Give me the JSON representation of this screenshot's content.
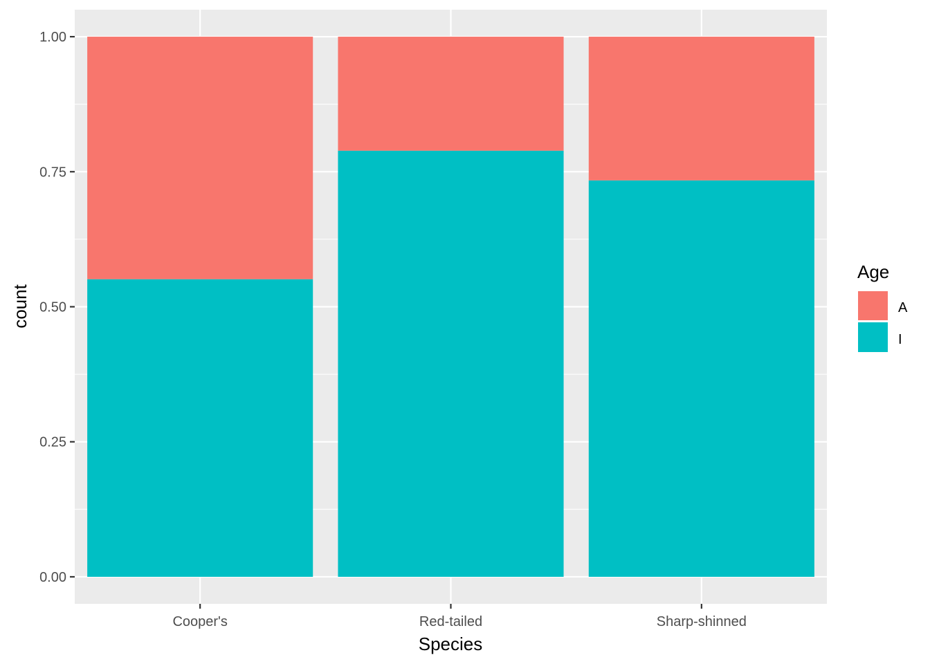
{
  "chart_data": {
    "type": "bar",
    "stacked": true,
    "categories": [
      "Cooper's",
      "Red-tailed",
      "Sharp-shinned"
    ],
    "series": [
      {
        "name": "I",
        "color": "#00bfc4",
        "values": [
          0.551,
          0.789,
          0.734
        ]
      },
      {
        "name": "A",
        "color": "#f8766d",
        "values": [
          0.449,
          0.211,
          0.266
        ]
      }
    ],
    "title": "",
    "xlabel": "Species",
    "ylabel": "count",
    "ylim": [
      -0.05,
      1.05
    ],
    "yticks": [
      "0.00",
      "0.25",
      "0.50",
      "0.75",
      "1.00"
    ],
    "ytick_values": [
      0,
      0.25,
      0.5,
      0.75,
      1.0
    ],
    "grid": true,
    "panel_background": "#ebebeb",
    "grid_color": "#ffffff",
    "legend": {
      "title": "Age",
      "position": "right",
      "entries": [
        {
          "label": "A",
          "color": "#f8766d"
        },
        {
          "label": "I",
          "color": "#00bfc4"
        }
      ]
    }
  }
}
